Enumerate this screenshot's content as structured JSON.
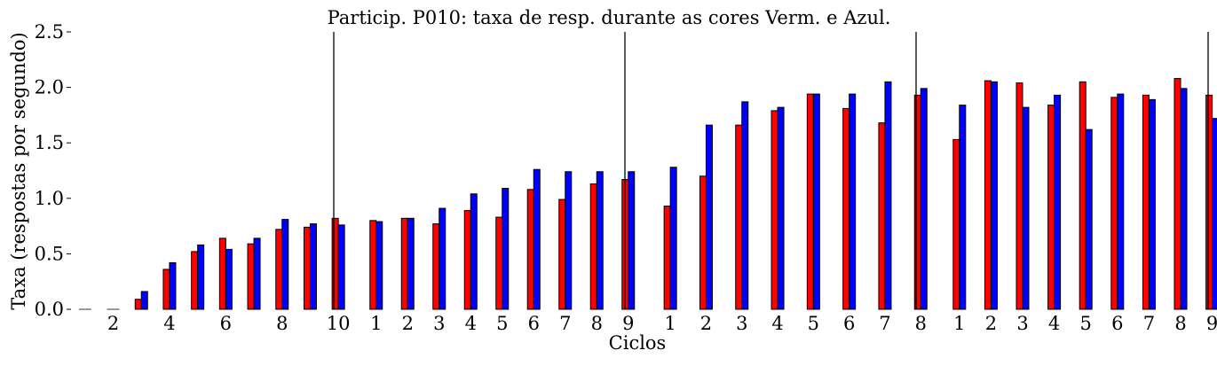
{
  "chart_data": {
    "type": "bar",
    "title": "Particip. P010: taxa de resp. durante as cores Verm. e Azul.",
    "xlabel": "Ciclos",
    "ylabel": "Taxa (respostas por segundo)",
    "ylim": [
      0,
      2.5
    ],
    "yticks": [
      "0.0",
      "0.5",
      "1.0",
      "1.5",
      "2.0",
      "2.5"
    ],
    "grid": false,
    "legend": "none",
    "colors": {
      "red": "#ff0000",
      "blue": "#0000ff",
      "edge": "#000000"
    },
    "sessions": [
      {
        "cycles": 10,
        "tick_labels": [
          {
            "cycle": 2,
            "label": "2"
          },
          {
            "cycle": 4,
            "label": "4"
          },
          {
            "cycle": 6,
            "label": "6"
          },
          {
            "cycle": 8,
            "label": "8"
          },
          {
            "cycle": 10,
            "label": "10"
          }
        ],
        "red": [
          0.0,
          0.0,
          0.09,
          0.36,
          0.52,
          0.64,
          0.59,
          0.72,
          0.74,
          0.82
        ],
        "blue": [
          0.0,
          0.0,
          0.16,
          0.42,
          0.58,
          0.54,
          0.64,
          0.81,
          0.77,
          0.76
        ]
      },
      {
        "cycles": 9,
        "tick_labels": [
          {
            "cycle": 1,
            "label": "1"
          },
          {
            "cycle": 2,
            "label": "2"
          },
          {
            "cycle": 3,
            "label": "3"
          },
          {
            "cycle": 4,
            "label": "4"
          },
          {
            "cycle": 5,
            "label": "5"
          },
          {
            "cycle": 6,
            "label": "6"
          },
          {
            "cycle": 7,
            "label": "7"
          },
          {
            "cycle": 8,
            "label": "8"
          },
          {
            "cycle": 9,
            "label": "9"
          }
        ],
        "red": [
          0.8,
          0.82,
          0.77,
          0.89,
          0.83,
          1.08,
          0.99,
          1.13,
          1.17
        ],
        "blue": [
          0.79,
          0.82,
          0.91,
          1.04,
          1.09,
          1.26,
          1.24,
          1.24,
          1.24
        ]
      },
      {
        "cycles": 8,
        "tick_labels": [
          {
            "cycle": 1,
            "label": "1"
          },
          {
            "cycle": 2,
            "label": "2"
          },
          {
            "cycle": 3,
            "label": "3"
          },
          {
            "cycle": 4,
            "label": "4"
          },
          {
            "cycle": 5,
            "label": "5"
          },
          {
            "cycle": 6,
            "label": "6"
          },
          {
            "cycle": 7,
            "label": "7"
          },
          {
            "cycle": 8,
            "label": "8"
          }
        ],
        "red": [
          0.93,
          1.2,
          1.66,
          1.79,
          1.94,
          1.81,
          1.68,
          1.93
        ],
        "blue": [
          1.28,
          1.66,
          1.87,
          1.82,
          1.94,
          1.94,
          2.05,
          1.99
        ]
      },
      {
        "cycles": 9,
        "tick_labels": [
          {
            "cycle": 1,
            "label": "1"
          },
          {
            "cycle": 2,
            "label": "2"
          },
          {
            "cycle": 3,
            "label": "3"
          },
          {
            "cycle": 4,
            "label": "4"
          },
          {
            "cycle": 5,
            "label": "5"
          },
          {
            "cycle": 6,
            "label": "6"
          },
          {
            "cycle": 7,
            "label": "7"
          },
          {
            "cycle": 8,
            "label": "8"
          },
          {
            "cycle": 9,
            "label": "9"
          }
        ],
        "red": [
          1.53,
          2.06,
          2.04,
          1.84,
          2.05,
          1.91,
          1.93,
          2.08,
          1.93
        ],
        "blue": [
          1.84,
          2.05,
          1.82,
          1.93,
          1.62,
          1.94,
          1.89,
          1.99,
          1.72
        ]
      }
    ]
  }
}
